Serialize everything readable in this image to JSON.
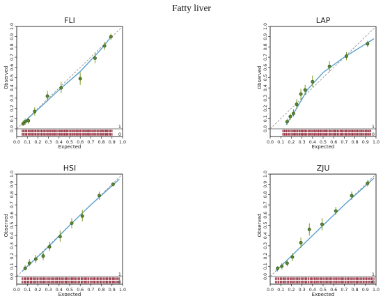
{
  "page_title": "Fatty liver",
  "colors": {
    "fit_line": "#5aa0cc",
    "ideal_line": "#888888",
    "point_fill": "#5a8a2a",
    "point_edge": "#2f4f14",
    "error_bar": "#7a9a1a",
    "rug": "#8e2434",
    "axis": "#000000"
  },
  "chart_data": [
    {
      "type": "scatter",
      "title": "FLI",
      "xlabel": "Expected",
      "ylabel": "Observed",
      "xlim": [
        0.0,
        1.0
      ],
      "ylim": [
        0.0,
        1.0
      ],
      "ticks": [
        "0.0",
        "0.1",
        "0.2",
        "0.3",
        "0.4",
        "0.5",
        "0.6",
        "0.7",
        "0.8",
        "0.9",
        "1.0"
      ],
      "rug_labels": [
        "1",
        "0"
      ],
      "rug_range": [
        0.05,
        0.9
      ],
      "points": [
        {
          "x": 0.06,
          "y": 0.05,
          "lo": 0.03,
          "hi": 0.08
        },
        {
          "x": 0.08,
          "y": 0.07,
          "lo": 0.04,
          "hi": 0.1
        },
        {
          "x": 0.11,
          "y": 0.08,
          "lo": 0.05,
          "hi": 0.11
        },
        {
          "x": 0.17,
          "y": 0.17,
          "lo": 0.13,
          "hi": 0.21
        },
        {
          "x": 0.29,
          "y": 0.32,
          "lo": 0.27,
          "hi": 0.37
        },
        {
          "x": 0.42,
          "y": 0.4,
          "lo": 0.35,
          "hi": 0.46
        },
        {
          "x": 0.6,
          "y": 0.49,
          "lo": 0.43,
          "hi": 0.55
        },
        {
          "x": 0.74,
          "y": 0.69,
          "lo": 0.64,
          "hi": 0.74
        },
        {
          "x": 0.83,
          "y": 0.81,
          "lo": 0.77,
          "hi": 0.85
        },
        {
          "x": 0.89,
          "y": 0.9,
          "lo": 0.87,
          "hi": 0.93
        }
      ],
      "fit": [
        [
          0.05,
          0.05
        ],
        [
          0.2,
          0.19
        ],
        [
          0.4,
          0.38
        ],
        [
          0.6,
          0.56
        ],
        [
          0.8,
          0.78
        ],
        [
          0.9,
          0.91
        ]
      ]
    },
    {
      "type": "scatter",
      "title": "LAP",
      "xlabel": "Expected",
      "ylabel": "Observed",
      "xlim": [
        0.0,
        1.0
      ],
      "ylim": [
        0.0,
        1.0
      ],
      "ticks": [
        "0.0",
        "0.1",
        "0.2",
        "0.3",
        "0.4",
        "0.5",
        "0.6",
        "0.7",
        "0.8",
        "0.9",
        "1.0"
      ],
      "rug_labels": [
        "1",
        "0"
      ],
      "rug_range": [
        0.12,
        0.95
      ],
      "points": [
        {
          "x": 0.16,
          "y": 0.07,
          "lo": 0.04,
          "hi": 0.1
        },
        {
          "x": 0.19,
          "y": 0.12,
          "lo": 0.09,
          "hi": 0.15
        },
        {
          "x": 0.22,
          "y": 0.15,
          "lo": 0.12,
          "hi": 0.19
        },
        {
          "x": 0.25,
          "y": 0.24,
          "lo": 0.2,
          "hi": 0.29
        },
        {
          "x": 0.29,
          "y": 0.34,
          "lo": 0.29,
          "hi": 0.39
        },
        {
          "x": 0.33,
          "y": 0.38,
          "lo": 0.33,
          "hi": 0.43
        },
        {
          "x": 0.4,
          "y": 0.46,
          "lo": 0.41,
          "hi": 0.52
        },
        {
          "x": 0.56,
          "y": 0.61,
          "lo": 0.56,
          "hi": 0.66
        },
        {
          "x": 0.72,
          "y": 0.71,
          "lo": 0.67,
          "hi": 0.75
        },
        {
          "x": 0.92,
          "y": 0.83,
          "lo": 0.8,
          "hi": 0.86
        }
      ],
      "fit": [
        [
          0.15,
          0.04
        ],
        [
          0.25,
          0.2
        ],
        [
          0.35,
          0.38
        ],
        [
          0.5,
          0.55
        ],
        [
          0.7,
          0.7
        ],
        [
          0.98,
          0.88
        ]
      ]
    },
    {
      "type": "scatter",
      "title": "HSI",
      "xlabel": "Expected",
      "ylabel": "Observed",
      "xlim": [
        0.0,
        1.0
      ],
      "ylim": [
        0.0,
        1.0
      ],
      "ticks": [
        "0.0",
        "0.1",
        "0.2",
        "0.3",
        "0.4",
        "0.5",
        "0.6",
        "0.7",
        "0.8",
        "0.9",
        "1.0"
      ],
      "rug_labels": [
        "1",
        "0"
      ],
      "rug_range": [
        0.05,
        0.97
      ],
      "points": [
        {
          "x": 0.08,
          "y": 0.08,
          "lo": 0.06,
          "hi": 0.11
        },
        {
          "x": 0.12,
          "y": 0.13,
          "lo": 0.1,
          "hi": 0.17
        },
        {
          "x": 0.18,
          "y": 0.17,
          "lo": 0.13,
          "hi": 0.21
        },
        {
          "x": 0.25,
          "y": 0.2,
          "lo": 0.16,
          "hi": 0.25
        },
        {
          "x": 0.31,
          "y": 0.29,
          "lo": 0.25,
          "hi": 0.34
        },
        {
          "x": 0.41,
          "y": 0.39,
          "lo": 0.34,
          "hi": 0.45
        },
        {
          "x": 0.52,
          "y": 0.52,
          "lo": 0.47,
          "hi": 0.57
        },
        {
          "x": 0.62,
          "y": 0.59,
          "lo": 0.54,
          "hi": 0.65
        },
        {
          "x": 0.78,
          "y": 0.79,
          "lo": 0.75,
          "hi": 0.83
        },
        {
          "x": 0.91,
          "y": 0.9,
          "lo": 0.88,
          "hi": 0.92
        }
      ],
      "fit": [
        [
          0.05,
          0.05
        ],
        [
          0.3,
          0.29
        ],
        [
          0.5,
          0.5
        ],
        [
          0.7,
          0.7
        ],
        [
          0.97,
          0.95
        ]
      ]
    },
    {
      "type": "scatter",
      "title": "ZJU",
      "xlabel": "Expected",
      "ylabel": "Observed",
      "xlim": [
        0.0,
        1.0
      ],
      "ylim": [
        0.0,
        1.0
      ],
      "ticks": [
        "0.0",
        "0.1",
        "0.2",
        "0.3",
        "0.4",
        "0.5",
        "0.6",
        "0.7",
        "0.8",
        "0.9",
        "1.0"
      ],
      "rug_labels": [
        "1",
        "0"
      ],
      "rug_range": [
        0.05,
        0.98
      ],
      "points": [
        {
          "x": 0.07,
          "y": 0.08,
          "lo": 0.05,
          "hi": 0.1
        },
        {
          "x": 0.11,
          "y": 0.1,
          "lo": 0.07,
          "hi": 0.13
        },
        {
          "x": 0.16,
          "y": 0.13,
          "lo": 0.1,
          "hi": 0.16
        },
        {
          "x": 0.21,
          "y": 0.19,
          "lo": 0.15,
          "hi": 0.23
        },
        {
          "x": 0.29,
          "y": 0.33,
          "lo": 0.28,
          "hi": 0.38
        },
        {
          "x": 0.37,
          "y": 0.46,
          "lo": 0.4,
          "hi": 0.52
        },
        {
          "x": 0.49,
          "y": 0.51,
          "lo": 0.45,
          "hi": 0.57
        },
        {
          "x": 0.62,
          "y": 0.64,
          "lo": 0.6,
          "hi": 0.68
        },
        {
          "x": 0.77,
          "y": 0.79,
          "lo": 0.75,
          "hi": 0.83
        },
        {
          "x": 0.92,
          "y": 0.91,
          "lo": 0.88,
          "hi": 0.94
        }
      ],
      "fit": [
        [
          0.05,
          0.05
        ],
        [
          0.3,
          0.3
        ],
        [
          0.5,
          0.5
        ],
        [
          0.7,
          0.7
        ],
        [
          0.98,
          0.96
        ]
      ]
    }
  ]
}
